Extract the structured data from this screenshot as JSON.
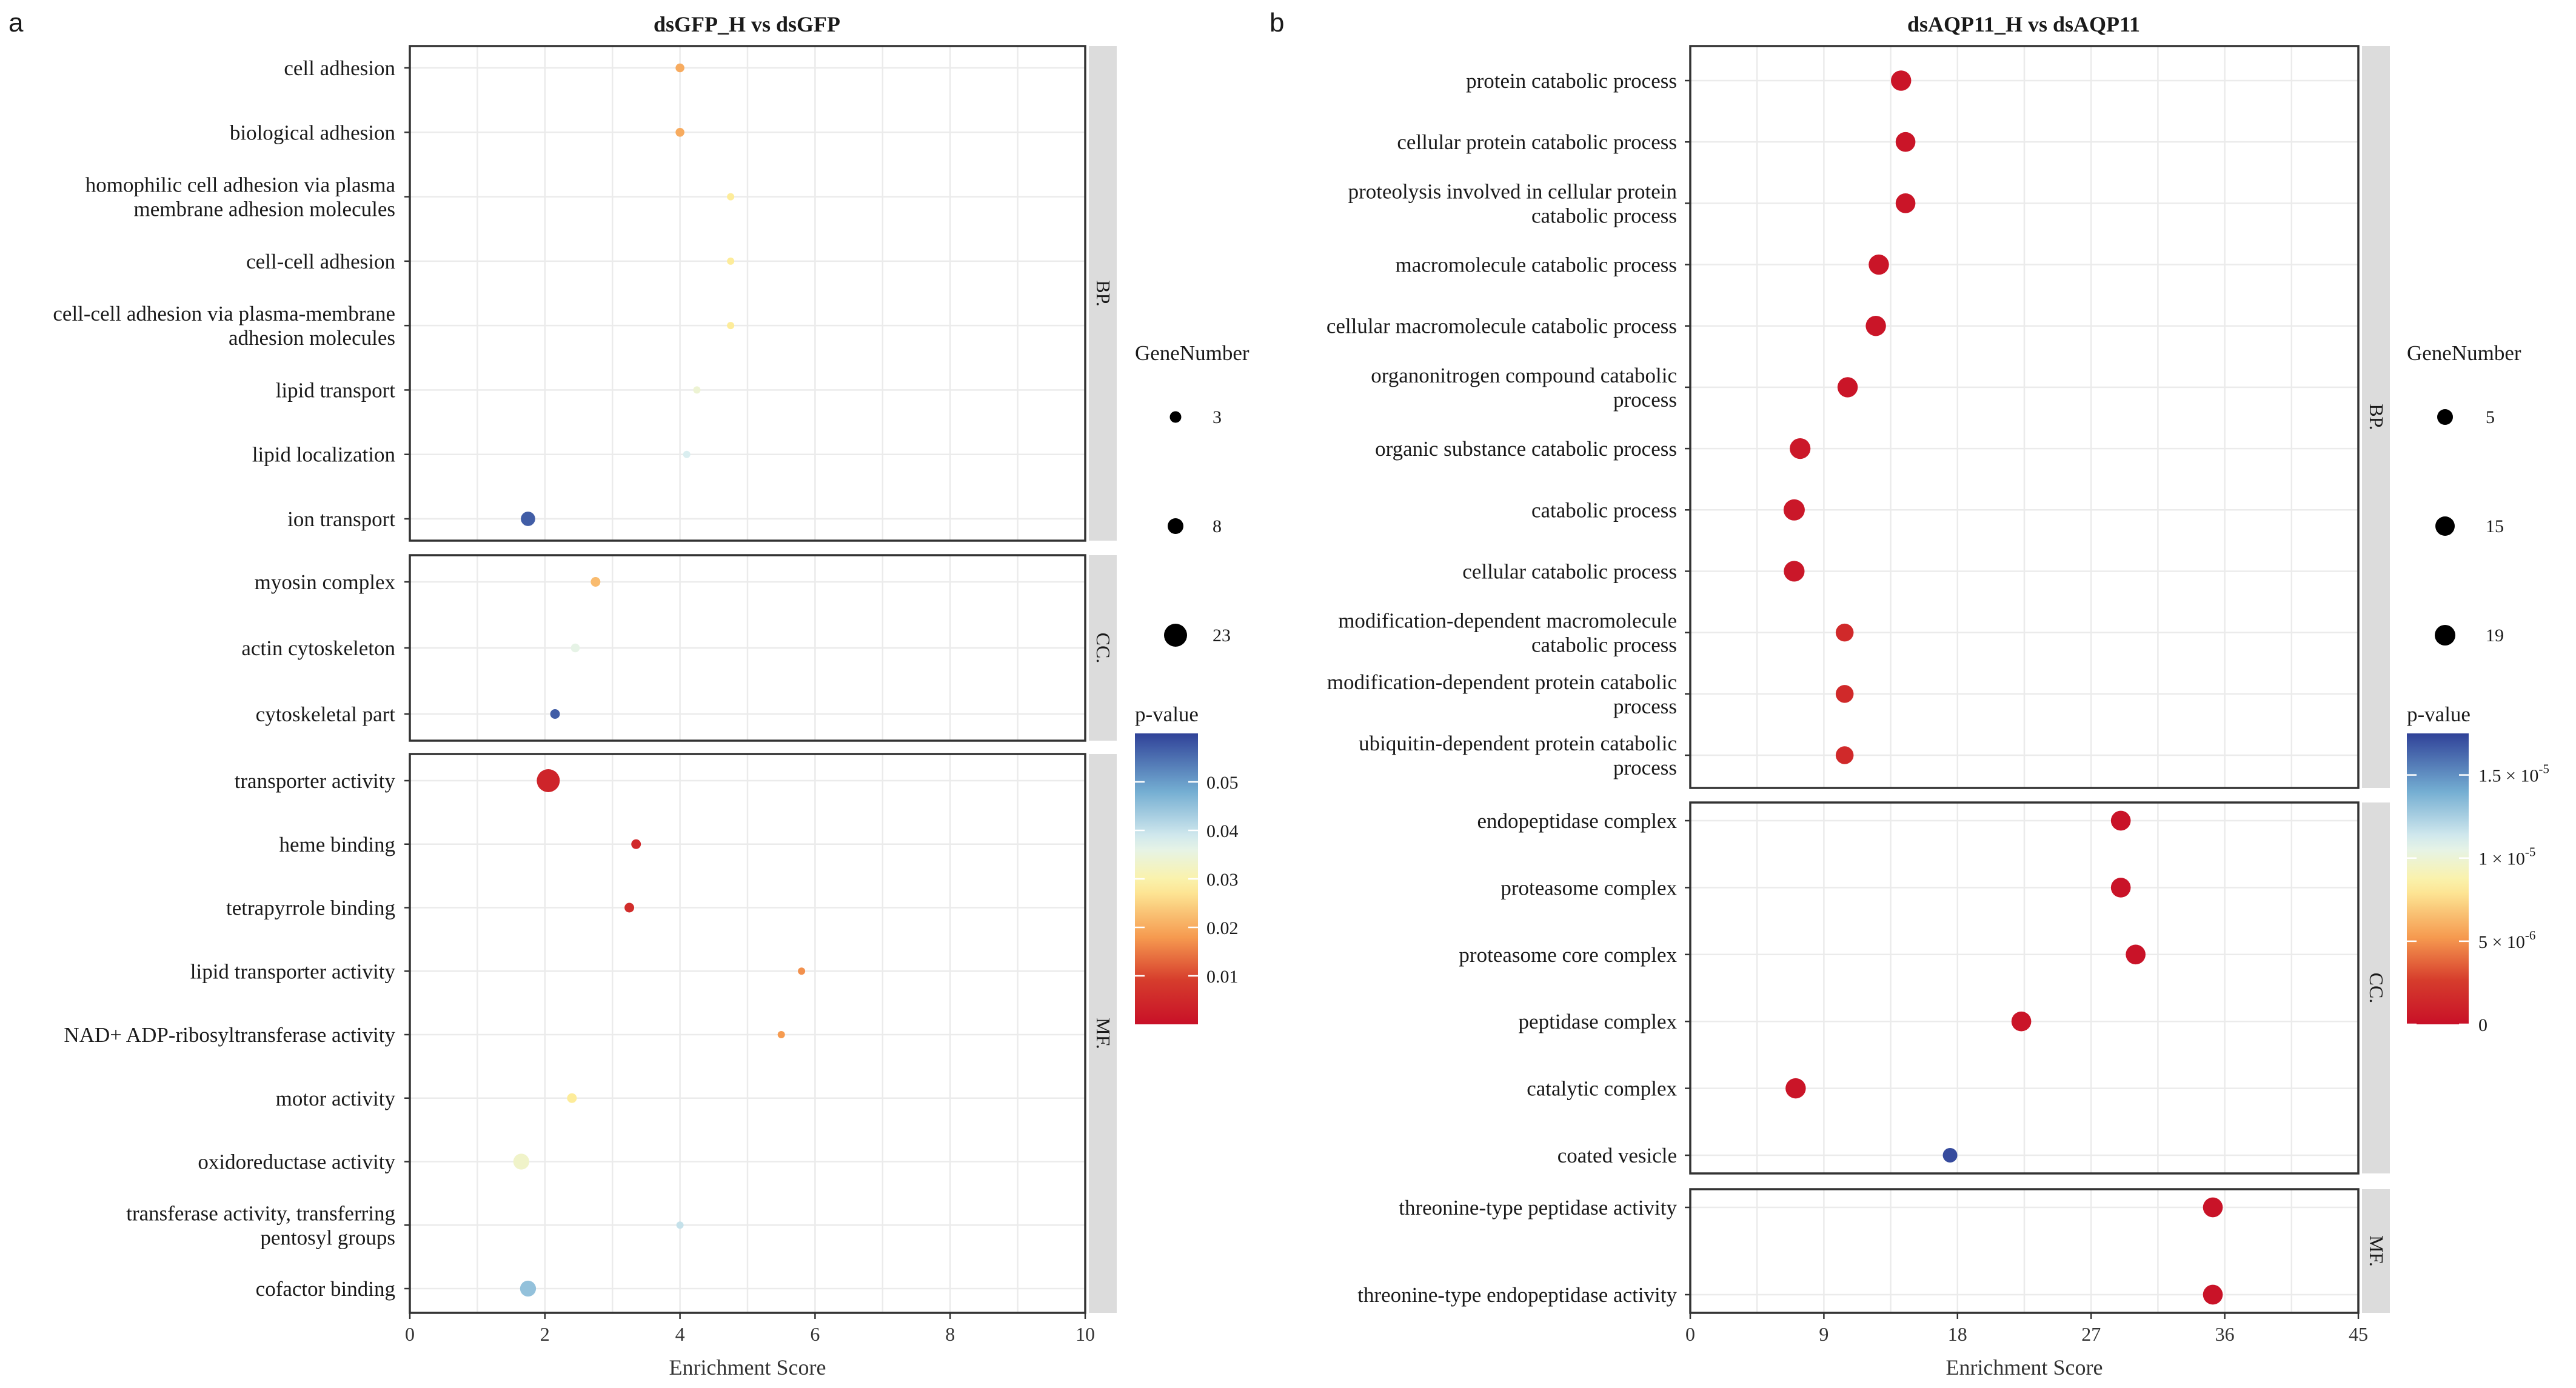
{
  "chart_data": [
    {
      "type": "scatter",
      "panel_letter": "a",
      "title": "dsGFP_H vs dsGFP",
      "xlabel": "Enrichment Score",
      "xlim": [
        0,
        10
      ],
      "xticks": [
        0,
        2,
        4,
        6,
        8,
        10
      ],
      "size_legend": {
        "title": "GeneNumber",
        "values": [
          3,
          8,
          23
        ]
      },
      "color_legend": {
        "title": "p-value",
        "range": [
          0,
          0.06
        ],
        "ticks": [
          0.01,
          0.02,
          0.03,
          0.04,
          0.05
        ],
        "tick_labels": [
          "0.01",
          "0.02",
          "0.03",
          "0.04",
          "0.05"
        ]
      },
      "facets": [
        {
          "name": "BP.",
          "terms": [
            {
              "term": "cell adhesion",
              "lines": [
                "cell adhesion"
              ],
              "score": 4.0,
              "genes": 5,
              "p": 0.02
            },
            {
              "term": "biological adhesion",
              "lines": [
                "biological adhesion"
              ],
              "score": 4.0,
              "genes": 5,
              "p": 0.02
            },
            {
              "term": "homophilic cell adhesion via plasma membrane adhesion molecules",
              "lines": [
                "homophilic cell adhesion via plasma",
                "membrane adhesion molecules"
              ],
              "score": 4.75,
              "genes": 3,
              "p": 0.028
            },
            {
              "term": "cell-cell adhesion",
              "lines": [
                "cell-cell adhesion"
              ],
              "score": 4.75,
              "genes": 3,
              "p": 0.028
            },
            {
              "term": "cell-cell adhesion via plasma-membrane adhesion molecules",
              "lines": [
                "cell-cell adhesion via plasma-membrane",
                "adhesion molecules"
              ],
              "score": 4.75,
              "genes": 3,
              "p": 0.028
            },
            {
              "term": "lipid transport",
              "lines": [
                "lipid transport"
              ],
              "score": 4.25,
              "genes": 3,
              "p": 0.034
            },
            {
              "term": "lipid localization",
              "lines": [
                "lipid localization"
              ],
              "score": 4.1,
              "genes": 3,
              "p": 0.038
            },
            {
              "term": "ion transport",
              "lines": [
                "ion transport"
              ],
              "score": 1.75,
              "genes": 12,
              "p": 0.057
            }
          ]
        },
        {
          "name": "CC.",
          "terms": [
            {
              "term": "myosin complex",
              "lines": [
                "myosin complex"
              ],
              "score": 2.75,
              "genes": 6,
              "p": 0.022
            },
            {
              "term": "actin cytoskeleton",
              "lines": [
                "actin cytoskeleton"
              ],
              "score": 2.45,
              "genes": 5,
              "p": 0.036
            },
            {
              "term": "cytoskeletal part",
              "lines": [
                "cytoskeletal part"
              ],
              "score": 2.15,
              "genes": 6,
              "p": 0.057
            }
          ]
        },
        {
          "name": "MF.",
          "terms": [
            {
              "term": "transporter activity",
              "lines": [
                "transporter activity"
              ],
              "score": 2.05,
              "genes": 23,
              "p": 0.004
            },
            {
              "term": "heme binding",
              "lines": [
                "heme binding"
              ],
              "score": 3.35,
              "genes": 6,
              "p": 0.005
            },
            {
              "term": "tetrapyrrole binding",
              "lines": [
                "tetrapyrrole binding"
              ],
              "score": 3.25,
              "genes": 6,
              "p": 0.006
            },
            {
              "term": "lipid transporter activity",
              "lines": [
                "lipid transporter activity"
              ],
              "score": 5.8,
              "genes": 3,
              "p": 0.017
            },
            {
              "term": "NAD+ ADP-ribosyltransferase activity",
              "lines": [
                "NAD+ ADP-ribosyltransferase activity"
              ],
              "score": 5.5,
              "genes": 3,
              "p": 0.018
            },
            {
              "term": "motor activity",
              "lines": [
                "motor activity"
              ],
              "score": 2.4,
              "genes": 6,
              "p": 0.028
            },
            {
              "term": "oxidoreductase activity",
              "lines": [
                "oxidoreductase activity"
              ],
              "score": 1.65,
              "genes": 14,
              "p": 0.033
            },
            {
              "term": "transferase activity, transferring pentosyl groups",
              "lines": [
                "transferase activity, transferring",
                "pentosyl groups"
              ],
              "score": 4.0,
              "genes": 3,
              "p": 0.04
            },
            {
              "term": "cofactor binding",
              "lines": [
                "cofactor binding"
              ],
              "score": 1.75,
              "genes": 14,
              "p": 0.045
            }
          ]
        }
      ]
    },
    {
      "type": "scatter",
      "panel_letter": "b",
      "title": "dsAQP11_H vs dsAQP11",
      "xlabel": "Enrichment Score",
      "xlim": [
        0,
        45
      ],
      "xticks": [
        0,
        9,
        18,
        27,
        36,
        45
      ],
      "size_legend": {
        "title": "GeneNumber",
        "values": [
          5,
          15,
          19
        ]
      },
      "color_legend": {
        "title": "p-value",
        "range": [
          0,
          1.75e-05
        ],
        "ticks": [
          0,
          5e-06,
          1e-05,
          1.5e-05
        ],
        "tick_labels": [
          "0",
          "5 × 10",
          "1 × 10",
          "1.5 × 10"
        ],
        "tick_exponents": [
          "",
          "-6",
          "-5",
          "-5"
        ]
      },
      "facets": [
        {
          "name": "BP.",
          "terms": [
            {
              "term": "protein catabolic process",
              "lines": [
                "protein catabolic process"
              ],
              "score": 14.2,
              "genes": 17,
              "p": 3e-07
            },
            {
              "term": "cellular protein catabolic process",
              "lines": [
                "cellular protein catabolic process"
              ],
              "score": 14.5,
              "genes": 16,
              "p": 3e-07
            },
            {
              "term": "proteolysis involved in cellular protein catabolic process",
              "lines": [
                "proteolysis involved in cellular protein",
                "catabolic process"
              ],
              "score": 14.5,
              "genes": 16,
              "p": 3e-07
            },
            {
              "term": "macromolecule catabolic process",
              "lines": [
                "macromolecule catabolic process"
              ],
              "score": 12.7,
              "genes": 17,
              "p": 3e-07
            },
            {
              "term": "cellular macromolecule catabolic process",
              "lines": [
                "cellular macromolecule catabolic process"
              ],
              "score": 12.5,
              "genes": 17,
              "p": 3e-07
            },
            {
              "term": "organonitrogen compound catabolic process",
              "lines": [
                "organonitrogen compound catabolic",
                "process"
              ],
              "score": 10.6,
              "genes": 17,
              "p": 3e-07
            },
            {
              "term": "organic substance catabolic process",
              "lines": [
                "organic substance catabolic process"
              ],
              "score": 7.4,
              "genes": 18,
              "p": 5e-07
            },
            {
              "term": "catabolic process",
              "lines": [
                "catabolic process"
              ],
              "score": 7.0,
              "genes": 19,
              "p": 4e-07
            },
            {
              "term": "cellular catabolic process",
              "lines": [
                "cellular catabolic process"
              ],
              "score": 7.0,
              "genes": 18,
              "p": 4e-07
            },
            {
              "term": "modification-dependent macromolecule catabolic process",
              "lines": [
                "modification-dependent macromolecule",
                "catabolic process"
              ],
              "score": 10.4,
              "genes": 12,
              "p": 1.5e-06
            },
            {
              "term": "modification-dependent protein catabolic process",
              "lines": [
                "modification-dependent protein catabolic",
                "process"
              ],
              "score": 10.4,
              "genes": 12,
              "p": 1.5e-06
            },
            {
              "term": "ubiquitin-dependent protein catabolic process",
              "lines": [
                "ubiquitin-dependent protein catabolic",
                "process"
              ],
              "score": 10.4,
              "genes": 12,
              "p": 1.5e-06
            }
          ]
        },
        {
          "name": "CC.",
          "terms": [
            {
              "term": "endopeptidase complex",
              "lines": [
                "endopeptidase complex"
              ],
              "score": 29.0,
              "genes": 16,
              "p": 2e-07
            },
            {
              "term": "proteasome complex",
              "lines": [
                "proteasome complex"
              ],
              "score": 29.0,
              "genes": 16,
              "p": 2e-07
            },
            {
              "term": "proteasome core complex",
              "lines": [
                "proteasome core complex"
              ],
              "score": 30.0,
              "genes": 16,
              "p": 2e-07
            },
            {
              "term": "peptidase complex",
              "lines": [
                "peptidase complex"
              ],
              "score": 22.3,
              "genes": 16,
              "p": 3e-07
            },
            {
              "term": "catalytic complex",
              "lines": [
                "catalytic complex"
              ],
              "score": 7.1,
              "genes": 17,
              "p": 3e-07
            },
            {
              "term": "coated vesicle",
              "lines": [
                "coated vesicle"
              ],
              "score": 17.5,
              "genes": 5,
              "p": 1.72e-05
            }
          ]
        },
        {
          "name": "MF.",
          "terms": [
            {
              "term": "threonine-type peptidase activity",
              "lines": [
                "threonine-type peptidase activity"
              ],
              "score": 35.2,
              "genes": 16,
              "p": 2e-07
            },
            {
              "term": "threonine-type endopeptidase activity",
              "lines": [
                "threonine-type endopeptidase activity"
              ],
              "score": 35.2,
              "genes": 16,
              "p": 2e-07
            }
          ]
        }
      ]
    }
  ]
}
